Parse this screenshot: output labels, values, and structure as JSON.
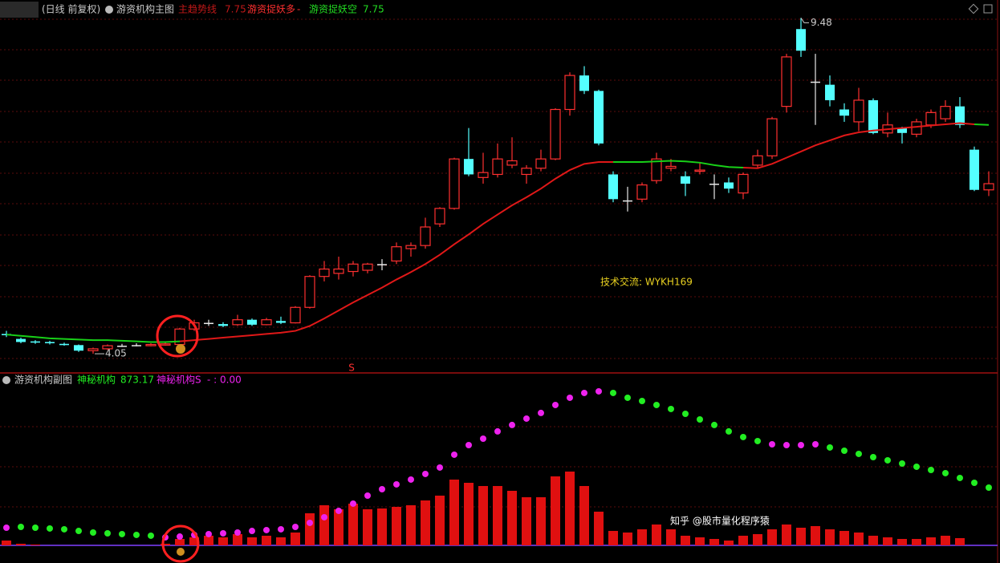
{
  "header": {
    "period": "(日线 前复权)",
    "main_indicator": "游资机构主图",
    "main_trend": "主趋势线",
    "more_readout": "-",
    "sub_indicator": "游资机构副图",
    "s_readout_prefix": "- :",
    "s_readout": {
      "value": 0,
      "label": "0.00"
    },
    "contact": "技术交流: WYKH169",
    "signal": "S",
    "watermark": "知乎 @股市量化程序猿"
  },
  "chart_data": [
    {
      "type": "candlestick",
      "open": [
        4.37,
        4.29,
        4.25,
        4.24,
        4.21,
        4.19,
        4.1,
        4.13,
        4.18,
        4.19,
        4.18,
        4.19,
        4.2,
        4.45,
        4.55,
        4.53,
        4.52,
        4.6,
        4.52,
        4.58,
        4.55,
        4.8,
        5.3,
        5.35,
        5.38,
        5.4,
        5.5,
        5.55,
        5.75,
        5.8,
        6.15,
        6.4,
        7.2,
        6.9,
        6.95,
        7.1,
        6.95,
        7.05,
        7.2,
        8.0,
        8.55,
        8.3,
        6.95,
        6.53,
        6.55,
        6.85,
        7.05,
        6.92,
        7.0,
        6.8,
        6.82,
        6.65,
        7.1,
        7.25,
        8.05,
        9.3,
        8.45,
        8.4,
        8.0,
        7.8,
        8.15,
        7.62,
        7.7,
        7.6,
        7.75,
        7.85,
        8.05,
        7.35,
        6.7
      ],
      "high": [
        4.42,
        4.31,
        4.27,
        4.26,
        4.23,
        4.2,
        4.15,
        4.2,
        4.21,
        4.22,
        4.22,
        4.23,
        4.47,
        4.6,
        4.6,
        4.56,
        4.68,
        4.62,
        4.63,
        4.65,
        4.82,
        5.32,
        5.55,
        5.62,
        5.55,
        5.52,
        5.58,
        5.85,
        5.85,
        6.25,
        6.42,
        7.22,
        7.7,
        7.3,
        7.45,
        7.55,
        7.1,
        7.35,
        8.02,
        8.6,
        8.7,
        8.32,
        7.0,
        6.75,
        6.82,
        7.3,
        7.2,
        7.0,
        7.15,
        6.95,
        6.9,
        6.98,
        7.35,
        7.88,
        8.9,
        9.48,
        8.9,
        8.55,
        8.1,
        8.35,
        8.18,
        7.95,
        7.72,
        7.85,
        8.0,
        8.15,
        8.2,
        7.4,
        7.0
      ],
      "low": [
        4.32,
        4.22,
        4.21,
        4.2,
        4.18,
        4.08,
        4.05,
        4.11,
        4.16,
        4.17,
        4.17,
        4.18,
        4.19,
        4.42,
        4.5,
        4.48,
        4.5,
        4.5,
        4.51,
        4.53,
        4.54,
        4.78,
        5.22,
        5.25,
        5.3,
        5.35,
        5.4,
        5.5,
        5.62,
        5.75,
        6.1,
        6.38,
        6.92,
        6.8,
        6.9,
        7.05,
        6.8,
        7.0,
        7.18,
        7.9,
        8.25,
        7.42,
        6.5,
        6.35,
        6.5,
        6.8,
        7.0,
        6.6,
        6.95,
        6.55,
        6.65,
        6.55,
        7.05,
        7.2,
        7.95,
        8.85,
        7.75,
        8.05,
        7.8,
        7.65,
        7.6,
        7.55,
        7.45,
        7.55,
        7.7,
        7.8,
        7.7,
        6.68,
        6.6
      ],
      "close": [
        4.35,
        4.24,
        4.23,
        4.22,
        4.19,
        4.1,
        4.13,
        4.18,
        4.18,
        4.19,
        4.2,
        4.21,
        4.45,
        4.55,
        4.55,
        4.5,
        4.6,
        4.52,
        4.6,
        4.55,
        4.8,
        5.3,
        5.42,
        5.42,
        5.5,
        5.5,
        5.5,
        5.78,
        5.8,
        6.1,
        6.4,
        7.2,
        6.95,
        6.98,
        7.2,
        7.17,
        7.05,
        7.2,
        8.0,
        8.55,
        8.3,
        7.45,
        6.55,
        6.53,
        6.78,
        7.2,
        7.08,
        6.8,
        7.02,
        6.8,
        6.72,
        6.95,
        7.25,
        7.85,
        8.85,
        8.95,
        8.45,
        8.15,
        7.9,
        8.15,
        7.62,
        7.75,
        7.62,
        7.8,
        7.95,
        8.05,
        7.75,
        6.7,
        6.8
      ],
      "up_color": "#ff3030",
      "down_color": "#54ffff",
      "flat_color": "#e8e8e8",
      "ylim": [
        3.74,
        9.77
      ],
      "series": [
        {
          "name": "游资捉妖多",
          "color": "#e01818",
          "values": [
            null,
            null,
            null,
            null,
            null,
            null,
            null,
            null,
            null,
            null,
            null,
            null,
            4.25,
            4.27,
            4.29,
            4.31,
            4.33,
            4.35,
            4.37,
            4.39,
            4.42,
            4.5,
            4.62,
            4.75,
            4.88,
            5.0,
            5.12,
            5.25,
            5.37,
            5.5,
            5.65,
            5.82,
            5.98,
            6.15,
            6.3,
            6.45,
            6.58,
            6.72,
            6.88,
            7.02,
            7.12,
            7.15,
            7.15,
            null,
            null,
            null,
            null,
            null,
            null,
            null,
            null,
            7.06,
            7.05,
            7.12,
            7.22,
            7.32,
            7.42,
            7.5,
            7.58,
            7.63,
            7.66,
            7.68,
            7.7,
            7.72,
            7.74,
            7.76,
            7.78,
            7.76,
            null
          ]
        },
        {
          "name": "游资捉妖空",
          "color": "#18d018",
          "values": [
            4.36,
            4.34,
            4.32,
            4.3,
            4.29,
            4.28,
            4.27,
            4.27,
            4.26,
            4.25,
            4.24,
            4.24,
            4.25,
            null,
            null,
            null,
            null,
            null,
            null,
            null,
            null,
            null,
            null,
            null,
            null,
            null,
            null,
            null,
            null,
            null,
            null,
            null,
            null,
            null,
            null,
            null,
            null,
            null,
            null,
            null,
            null,
            null,
            7.15,
            7.15,
            7.15,
            7.16,
            7.17,
            7.16,
            7.14,
            7.1,
            7.07,
            7.06,
            null,
            null,
            null,
            null,
            null,
            null,
            null,
            null,
            null,
            null,
            null,
            null,
            null,
            null,
            null,
            7.76,
            7.75
          ]
        }
      ]
    },
    {
      "type": "indicator",
      "bars": {
        "color": "#e01010",
        "values": [
          600,
          200,
          100,
          0,
          0,
          0,
          0,
          0,
          0,
          0,
          0,
          200,
          800,
          1000,
          1200,
          1000,
          1400,
          1000,
          1200,
          1000,
          1600,
          4000,
          5000,
          4500,
          5200,
          4500,
          4600,
          4800,
          5000,
          5600,
          6200,
          8200,
          7800,
          7400,
          7400,
          6800,
          6000,
          6000,
          8600,
          9200,
          7400,
          4200,
          1800,
          1600,
          2000,
          2600,
          2000,
          1200,
          1000,
          800,
          600,
          1200,
          1400,
          2000,
          2600,
          2200,
          2400,
          2000,
          1800,
          1600,
          1200,
          1000,
          800,
          800,
          1000,
          1200,
          900,
          0,
          0
        ]
      },
      "y2lim": [
        0,
        19500
      ],
      "ylim": [
        0,
        2365
      ],
      "series": [
        {
          "name": "神秘机构",
          "color": "#22ee22",
          "values": [
            null,
            279,
            267,
            255,
            243,
            218,
            194,
            182,
            170,
            158,
            146,
            null,
            null,
            null,
            null,
            null,
            null,
            null,
            null,
            null,
            null,
            null,
            null,
            null,
            null,
            null,
            null,
            null,
            null,
            null,
            null,
            null,
            null,
            null,
            null,
            null,
            null,
            null,
            null,
            null,
            null,
            null,
            2305,
            2232,
            2183,
            2123,
            2062,
            1989,
            1904,
            1820,
            1723,
            1638,
            1577,
            null,
            null,
            null,
            null,
            1480,
            1431,
            1383,
            1334,
            1286,
            1237,
            1189,
            1140,
            1092,
            1019,
            946,
            873.17
          ]
        },
        {
          "name": "神秘机构S",
          "color": "#ee22ee",
          "values": [
            267,
            null,
            null,
            null,
            null,
            null,
            null,
            null,
            null,
            null,
            null,
            121,
            133,
            158,
            170,
            182,
            194,
            218,
            231,
            243,
            279,
            340,
            425,
            522,
            631,
            752,
            849,
            922,
            995,
            1080,
            1177,
            1371,
            1516,
            1613,
            1723,
            1820,
            1917,
            2002,
            2123,
            2232,
            2305,
            2329,
            null,
            null,
            null,
            null,
            null,
            null,
            null,
            null,
            null,
            null,
            null,
            1528,
            1516,
            1516,
            1528,
            null,
            null,
            null,
            null,
            null,
            null,
            null,
            null,
            null,
            null,
            null,
            null
          ]
        }
      ]
    }
  ]
}
